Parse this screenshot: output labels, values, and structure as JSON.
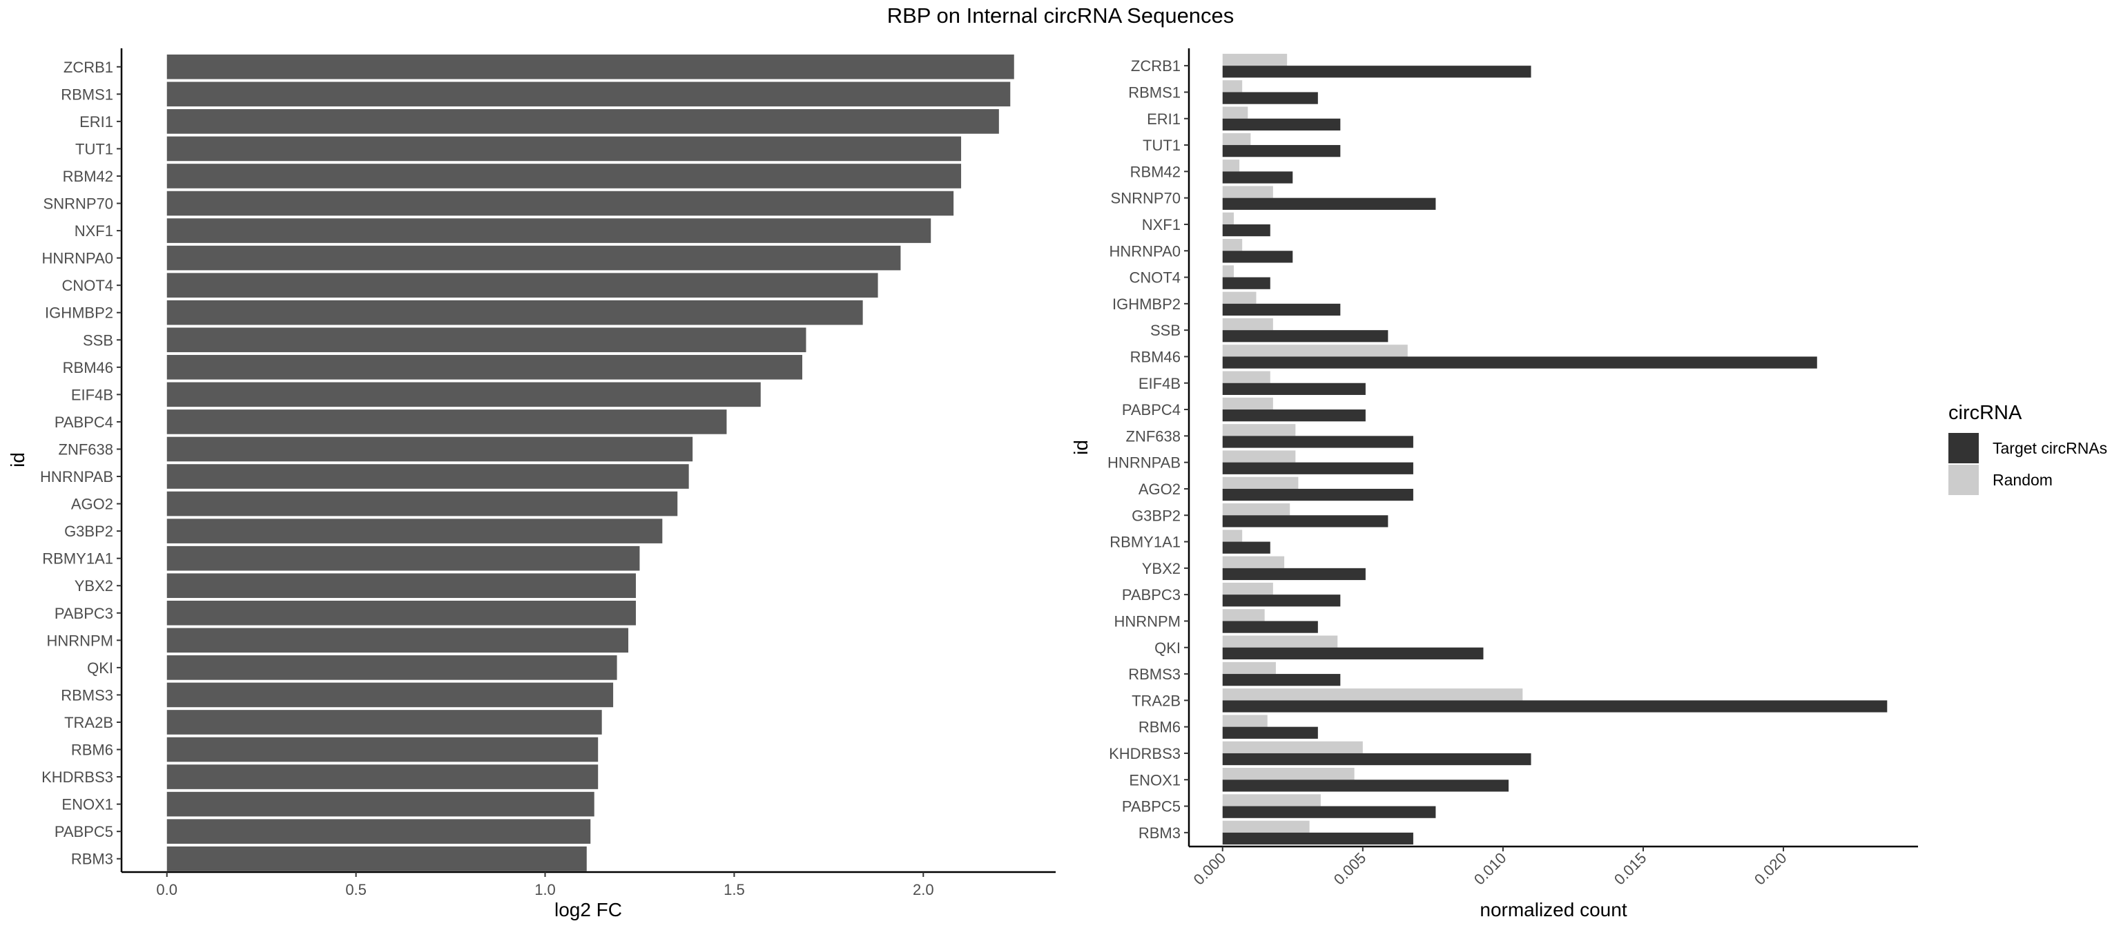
{
  "title": "RBP on Internal circRNA Sequences",
  "colors": {
    "left_bar": "#595959",
    "target": "#333333",
    "random": "#cccccc",
    "tick_text": "#4d4d4d",
    "axis_line": "#000000"
  },
  "chart_data": [
    {
      "type": "bar",
      "orientation": "horizontal",
      "categories": [
        "ZCRB1",
        "RBMS1",
        "ERI1",
        "TUT1",
        "RBM42",
        "SNRNP70",
        "NXF1",
        "HNRNPA0",
        "CNOT4",
        "IGHMBP2",
        "SSB",
        "RBM46",
        "EIF4B",
        "PABPC4",
        "ZNF638",
        "HNRNPAB",
        "AGO2",
        "G3BP2",
        "RBMY1A1",
        "YBX2",
        "PABPC3",
        "HNRNPM",
        "QKI",
        "RBMS3",
        "TRA2B",
        "RBM6",
        "KHDRBS3",
        "ENOX1",
        "PABPC5",
        "RBM3"
      ],
      "values": [
        2.24,
        2.23,
        2.2,
        2.1,
        2.1,
        2.08,
        2.02,
        1.94,
        1.88,
        1.84,
        1.69,
        1.68,
        1.57,
        1.48,
        1.39,
        1.38,
        1.35,
        1.31,
        1.25,
        1.24,
        1.24,
        1.22,
        1.19,
        1.18,
        1.15,
        1.14,
        1.14,
        1.13,
        1.12,
        1.11
      ],
      "xlabel": "log2 FC",
      "ylabel": "id",
      "xlim": [
        -0.12,
        2.35
      ],
      "xticks": [
        0.0,
        0.5,
        1.0,
        1.5,
        2.0
      ],
      "xtick_labels": [
        "0.0",
        "0.5",
        "1.0",
        "1.5",
        "2.0"
      ],
      "grid": false
    },
    {
      "type": "bar",
      "orientation": "horizontal",
      "grouped": true,
      "categories": [
        "ZCRB1",
        "RBMS1",
        "ERI1",
        "TUT1",
        "RBM42",
        "SNRNP70",
        "NXF1",
        "HNRNPA0",
        "CNOT4",
        "IGHMBP2",
        "SSB",
        "RBM46",
        "EIF4B",
        "PABPC4",
        "ZNF638",
        "HNRNPAB",
        "AGO2",
        "G3BP2",
        "RBMY1A1",
        "YBX2",
        "PABPC3",
        "HNRNPM",
        "QKI",
        "RBMS3",
        "TRA2B",
        "RBM6",
        "KHDRBS3",
        "ENOX1",
        "PABPC5",
        "RBM3"
      ],
      "series": [
        {
          "name": "Random",
          "values": [
            0.0023,
            0.0007,
            0.0009,
            0.001,
            0.0006,
            0.0018,
            0.0004,
            0.0007,
            0.0004,
            0.0012,
            0.0018,
            0.0066,
            0.0017,
            0.0018,
            0.0026,
            0.0026,
            0.0027,
            0.0024,
            0.0007,
            0.0022,
            0.0018,
            0.0015,
            0.0041,
            0.0019,
            0.0107,
            0.0016,
            0.005,
            0.0047,
            0.0035,
            0.0031
          ]
        },
        {
          "name": "Target circRNAs",
          "values": [
            0.011,
            0.0034,
            0.0042,
            0.0042,
            0.0025,
            0.0076,
            0.0017,
            0.0025,
            0.0017,
            0.0042,
            0.0059,
            0.0212,
            0.0051,
            0.0051,
            0.0068,
            0.0068,
            0.0068,
            0.0059,
            0.0017,
            0.0051,
            0.0042,
            0.0034,
            0.0093,
            0.0042,
            0.0237,
            0.0034,
            0.011,
            0.0102,
            0.0076,
            0.0068
          ]
        }
      ],
      "xlabel": "normalized count",
      "ylabel": "id",
      "xlim": [
        -0.0012,
        0.0248
      ],
      "xticks": [
        0.0,
        0.005,
        0.01,
        0.015,
        0.02
      ],
      "xtick_labels": [
        "0.000",
        "0.005",
        "0.010",
        "0.015",
        "0.020"
      ],
      "xtick_rotation": -45,
      "grid": false,
      "legend": {
        "title": "circRNA",
        "placement": "right",
        "entries": [
          "Target circRNAs",
          "Random"
        ]
      }
    }
  ]
}
